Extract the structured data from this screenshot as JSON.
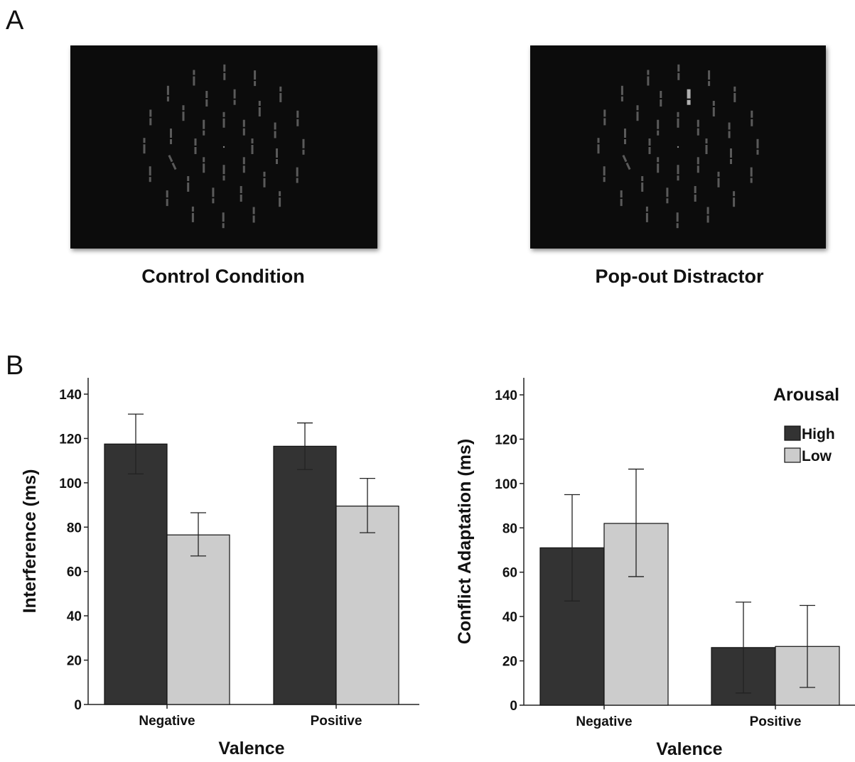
{
  "panel_a": {
    "letter": "A",
    "stimuli": [
      {
        "caption": "Control Condition"
      },
      {
        "caption": "Pop-out Distractor"
      }
    ]
  },
  "panel_b": {
    "letter": "B"
  },
  "colors": {
    "high": "#333333",
    "low": "#cccccc",
    "screen": "#0c0c0c",
    "element": "#5a5a5a",
    "popout": "#b0b0b0"
  },
  "chart_data": [
    {
      "type": "bar",
      "categories": [
        "Negative",
        "Positive"
      ],
      "series": [
        {
          "name": "High",
          "values": [
            117.5,
            116.5
          ],
          "err_low": [
            104,
            106
          ],
          "err_high": [
            131,
            127
          ]
        },
        {
          "name": "Low",
          "values": [
            76.5,
            89.5
          ],
          "err_low": [
            67,
            77.5
          ],
          "err_high": [
            86.5,
            102
          ]
        }
      ],
      "xlabel": "Valence",
      "ylabel": "Interference (ms)",
      "ylim": [
        0,
        140
      ],
      "yticks": [
        "0",
        "20",
        "40",
        "60",
        "80",
        "100",
        "120",
        "140"
      ],
      "legend": null
    },
    {
      "type": "bar",
      "categories": [
        "Negative",
        "Positive"
      ],
      "series": [
        {
          "name": "High",
          "values": [
            71,
            26
          ],
          "err_low": [
            47,
            5.5
          ],
          "err_high": [
            95,
            46.5
          ]
        },
        {
          "name": "Low",
          "values": [
            82,
            26.5
          ],
          "err_low": [
            58,
            8
          ],
          "err_high": [
            106.5,
            45
          ]
        }
      ],
      "xlabel": "Valence",
      "ylabel": "Conflict Adaptation (ms)",
      "ylim": [
        0,
        140
      ],
      "yticks": [
        "0",
        "20",
        "40",
        "60",
        "80",
        "100",
        "120",
        "140"
      ],
      "legend": {
        "title": "Arousal",
        "labels": [
          "High",
          "Low"
        ],
        "placement": "top-right"
      }
    }
  ]
}
